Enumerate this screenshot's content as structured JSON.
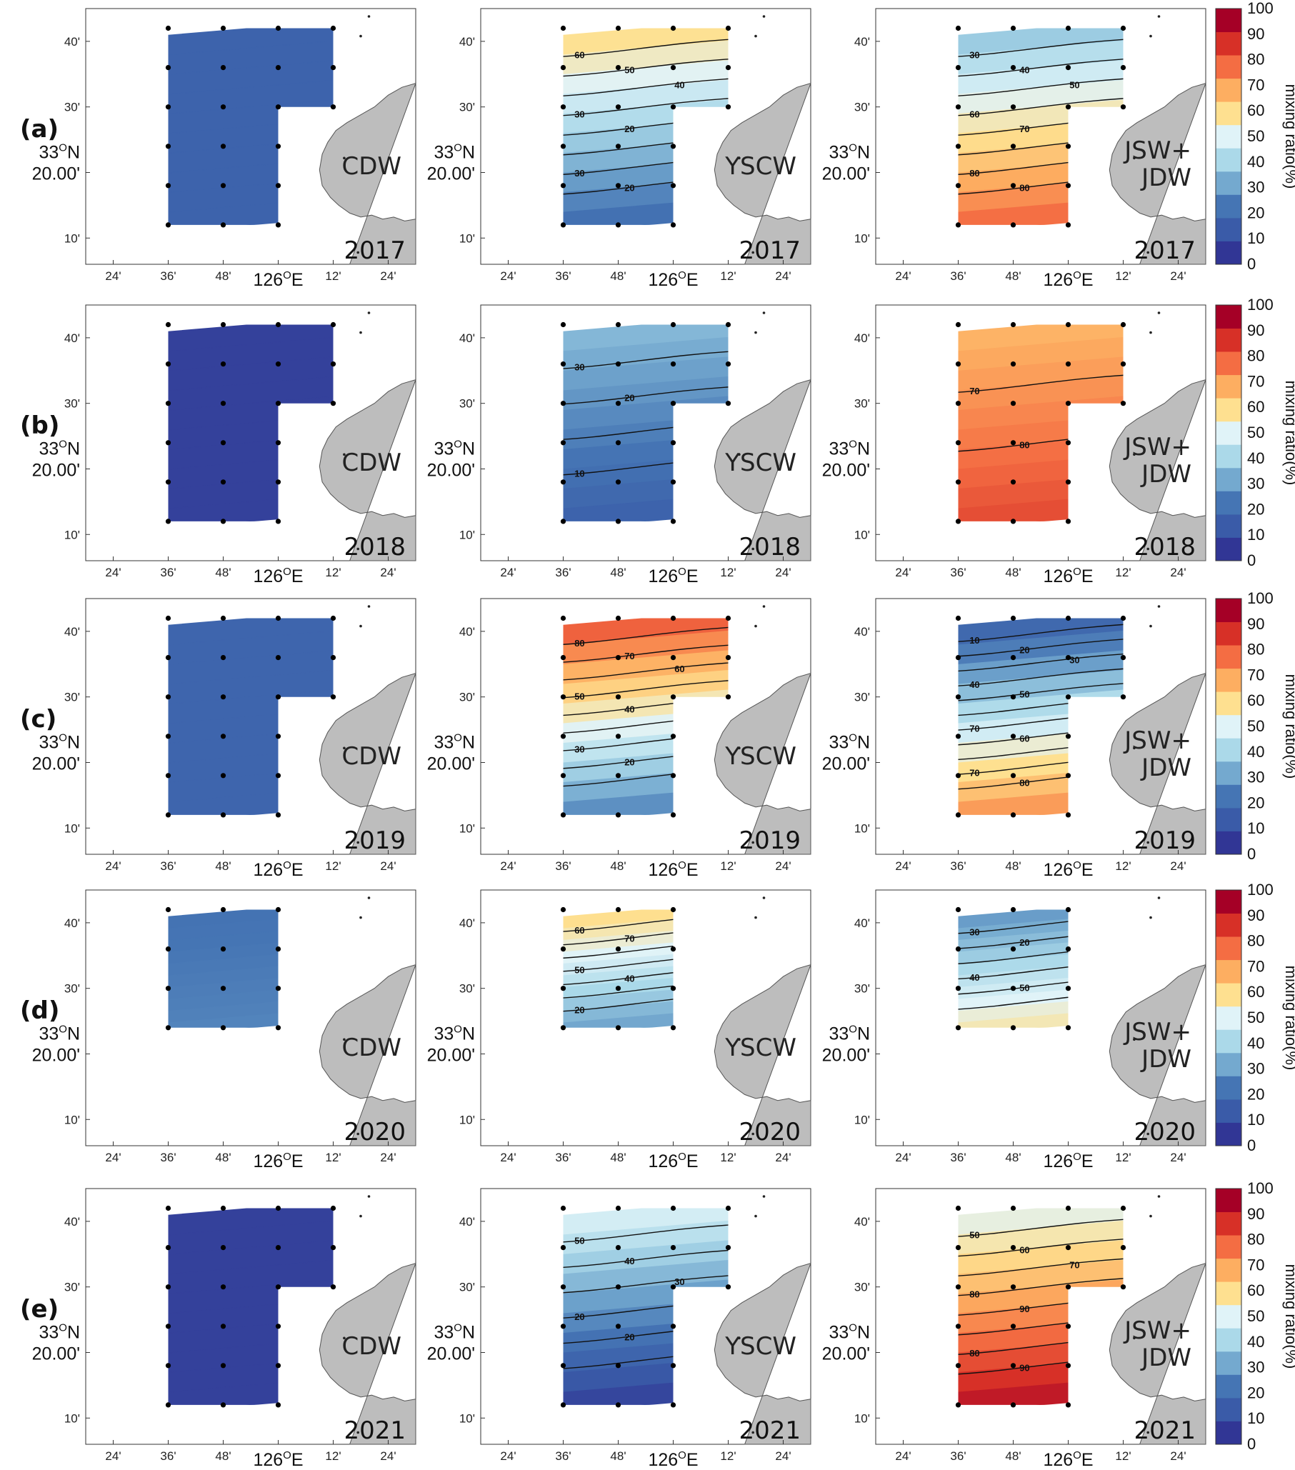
{
  "chart_data": {
    "type": "heatmap",
    "rows": [
      "(a)",
      "(b)",
      "(c)",
      "(d)",
      "(e)"
    ],
    "years": [
      "2017",
      "2018",
      "2019",
      "2020",
      "2021"
    ],
    "water_masses": [
      "CDW",
      "YSCW",
      "JSW+\nJDW"
    ],
    "x_ticks": [
      "24'",
      "36'",
      "48'",
      "126°E",
      "12'",
      "24'"
    ],
    "x_tick_values": [
      125.4,
      125.6,
      125.8,
      126.0,
      126.2,
      126.4
    ],
    "y_ticks": [
      "10'",
      "20.00'",
      "30'",
      "40'"
    ],
    "y_tick_values": [
      33.1667,
      33.3333,
      33.5,
      33.6667
    ],
    "y_major_label": "33°N",
    "xlim": [
      125.3,
      126.5
    ],
    "ylim": [
      33.1,
      33.75
    ],
    "colorbar": {
      "label": "mixing ratio(%)",
      "ticks": [
        "0",
        "10",
        "20",
        "30",
        "40",
        "50",
        "60",
        "70",
        "80",
        "90",
        "100"
      ],
      "colors": [
        "#313695",
        "#3a5ba8",
        "#4575b4",
        "#74a9cf",
        "#abd9e9",
        "#e0f3f8",
        "#fee090",
        "#fdae61",
        "#f46d43",
        "#d73027",
        "#a50026"
      ]
    },
    "panels": [
      {
        "row": 0,
        "col": 0,
        "water": "CDW",
        "year": "2017",
        "shape": "L",
        "top_value": 13,
        "bottom_value": 13,
        "contours": []
      },
      {
        "row": 0,
        "col": 1,
        "water": "YSCW",
        "year": "2017",
        "shape": "L",
        "top_value": 62,
        "bottom_value": 16,
        "contours": [
          "60",
          "50",
          "40",
          "30",
          "20",
          "40",
          "30",
          "20"
        ]
      },
      {
        "row": 0,
        "col": 2,
        "water": "JSW+JDW",
        "year": "2017",
        "shape": "L",
        "top_value": 35,
        "bottom_value": 82,
        "contours": [
          "30",
          "40",
          "50",
          "60",
          "70",
          "80",
          "80",
          "80"
        ]
      },
      {
        "row": 1,
        "col": 0,
        "water": "CDW",
        "year": "2018",
        "shape": "L",
        "top_value": 3,
        "bottom_value": 3,
        "contours": []
      },
      {
        "row": 1,
        "col": 1,
        "water": "YSCW",
        "year": "2018",
        "shape": "L",
        "top_value": 34,
        "bottom_value": 12,
        "contours": [
          "30",
          "20",
          "10",
          "10"
        ]
      },
      {
        "row": 1,
        "col": 2,
        "water": "JSW+JDW",
        "year": "2018",
        "shape": "L",
        "top_value": 68,
        "bottom_value": 86,
        "contours": [
          "70",
          "80"
        ]
      },
      {
        "row": 2,
        "col": 0,
        "water": "CDW",
        "year": "2019",
        "shape": "L",
        "top_value": 14,
        "bottom_value": 14,
        "contours": []
      },
      {
        "row": 2,
        "col": 1,
        "water": "YSCW",
        "year": "2019",
        "shape": "L",
        "top_value": 85,
        "bottom_value": 22,
        "contours": [
          "80",
          "70",
          "60",
          "50",
          "40",
          "30",
          "30",
          "20",
          "20"
        ]
      },
      {
        "row": 2,
        "col": 2,
        "water": "JSW+JDW",
        "year": "2019",
        "shape": "L",
        "top_value": 12,
        "bottom_value": 76,
        "contours": [
          "10",
          "20",
          "30",
          "40",
          "50",
          "60",
          "70",
          "60",
          "80",
          "70",
          "80"
        ]
      },
      {
        "row": 3,
        "col": 0,
        "water": "CDW",
        "year": "2020",
        "shape": "square",
        "top_value": 19,
        "bottom_value": 23,
        "contours": []
      },
      {
        "row": 3,
        "col": 1,
        "water": "YSCW",
        "year": "2020",
        "shape": "square",
        "top_value": 62,
        "bottom_value": 28,
        "contours": [
          "60",
          "70",
          "60",
          "50",
          "40",
          "30",
          "20"
        ]
      },
      {
        "row": 3,
        "col": 2,
        "water": "JSW+JDW",
        "year": "2020",
        "shape": "square",
        "top_value": 26,
        "bottom_value": 58,
        "contours": [
          "30",
          "20",
          "30",
          "40",
          "50",
          "60"
        ]
      },
      {
        "row": 4,
        "col": 0,
        "water": "CDW",
        "year": "2021",
        "shape": "L",
        "top_value": 3,
        "bottom_value": 3,
        "contours": []
      },
      {
        "row": 4,
        "col": 1,
        "water": "YSCW",
        "year": "2021",
        "shape": "L",
        "top_value": 50,
        "bottom_value": 2,
        "contours": [
          "50",
          "40",
          "30",
          "20",
          "20",
          "10"
        ]
      },
      {
        "row": 4,
        "col": 2,
        "water": "JSW+JDW",
        "year": "2021",
        "shape": "L",
        "top_value": 50,
        "bottom_value": 97,
        "contours": [
          "50",
          "60",
          "70",
          "80",
          "90",
          "70",
          "80",
          "90"
        ]
      }
    ]
  }
}
